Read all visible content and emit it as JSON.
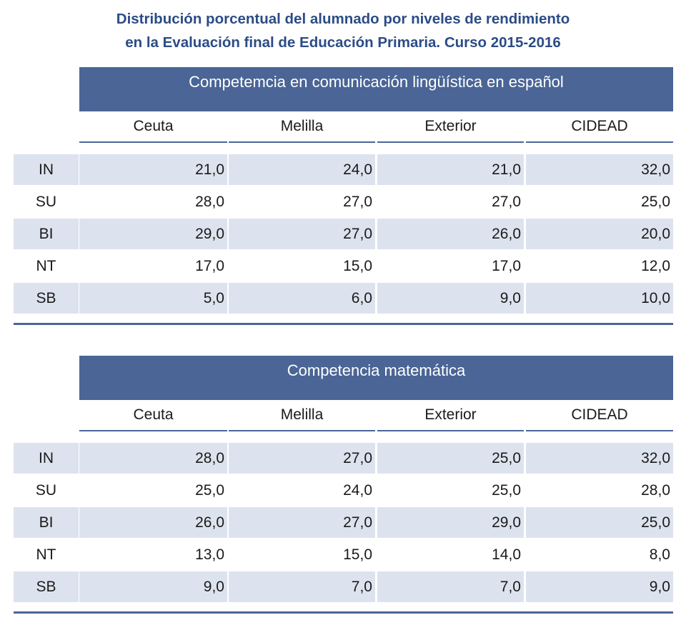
{
  "title": {
    "line1": "Distribución porcentual del alumnado por niveles de rendimiento",
    "line2": "en la Evaluación final de Educación Primaria. Curso 2015‑2016"
  },
  "chart_data": [
    {
      "type": "table",
      "title": "Competemcia en comunicación lingüística en español",
      "columns": [
        "Ceuta",
        "Melilla",
        "Exterior",
        "CIDEAD"
      ],
      "rows": [
        {
          "label": "IN",
          "values": [
            "21,0",
            "24,0",
            "21,0",
            "32,0"
          ]
        },
        {
          "label": "SU",
          "values": [
            "28,0",
            "27,0",
            "27,0",
            "25,0"
          ]
        },
        {
          "label": "BI",
          "values": [
            "29,0",
            "27,0",
            "26,0",
            "20,0"
          ]
        },
        {
          "label": "NT",
          "values": [
            "17,0",
            "15,0",
            "17,0",
            "12,0"
          ]
        },
        {
          "label": "SB",
          "values": [
            "5,0",
            "6,0",
            "9,0",
            "10,0"
          ]
        }
      ]
    },
    {
      "type": "table",
      "title": "Competencia matemática",
      "columns": [
        "Ceuta",
        "Melilla",
        "Exterior",
        "CIDEAD"
      ],
      "rows": [
        {
          "label": "IN",
          "values": [
            "28,0",
            "27,0",
            "25,0",
            "32,0"
          ]
        },
        {
          "label": "SU",
          "values": [
            "25,0",
            "24,0",
            "25,0",
            "28,0"
          ]
        },
        {
          "label": "BI",
          "values": [
            "26,0",
            "27,0",
            "29,0",
            "25,0"
          ]
        },
        {
          "label": "NT",
          "values": [
            "13,0",
            "15,0",
            "14,0",
            "8,0"
          ]
        },
        {
          "label": "SB",
          "values": [
            "9,0",
            "7,0",
            "7,0",
            "9,0"
          ]
        }
      ]
    }
  ]
}
